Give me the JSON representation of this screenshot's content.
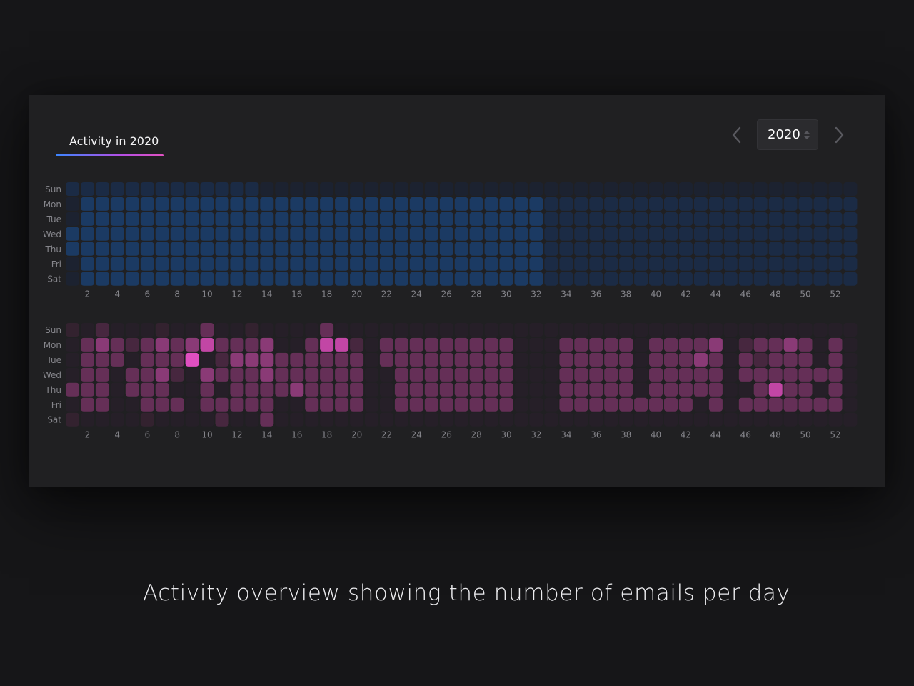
{
  "tab": {
    "label": "Activity in 2020"
  },
  "year_picker": {
    "value": "2020"
  },
  "icons": {
    "prev": "chevron-left-icon",
    "next": "chevron-right-icon",
    "spinner": "up-down-arrows-icon"
  },
  "caption": "Activity overview showing the number of emails per day",
  "colors": {
    "background": "#161618",
    "card": "#202022",
    "blue_scale": [
      "#1c2230",
      "#1b2b45",
      "#1b3a63",
      "#1d4f8a",
      "#1e6ac0",
      "#1f86ef"
    ],
    "pink_scale": [
      "#261f28",
      "#33222f",
      "#47273f",
      "#652f57",
      "#8a3a76",
      "#c246a5",
      "#e04fc1"
    ]
  },
  "chart_data": [
    {
      "type": "heatmap",
      "name": "",
      "y_labels": [
        "Sun",
        "Mon",
        "Tue",
        "Wed",
        "Thu",
        "Fri",
        "Sat"
      ],
      "x_tick_labels": [
        "2",
        "4",
        "6",
        "8",
        "10",
        "12",
        "14",
        "16",
        "18",
        "20",
        "22",
        "24",
        "26",
        "28",
        "30",
        "32",
        "34",
        "36",
        "38",
        "40",
        "42",
        "44",
        "46",
        "48",
        "50",
        "52"
      ],
      "weeks": 53,
      "levels": [
        "11111111111110000000000000000000000000000000000000000",
        "02222222222222222222222222222222111111111111111111111",
        "02222222222222222222222222222222111111111111111111111",
        "22222222222222222222222222222222111111111111111111111",
        "22222222222222222222222222222222111111111111111111111",
        "02222222222222222222222222222222111111111111111111111",
        "02222222222222222222222222222222111111111111111111111"
      ]
    },
    {
      "type": "heatmap",
      "name": "",
      "y_labels": [
        "Sun",
        "Mon",
        "Tue",
        "Wed",
        "Thu",
        "Fri",
        "Sat"
      ],
      "x_tick_labels": [
        "2",
        "4",
        "6",
        "8",
        "10",
        "12",
        "14",
        "16",
        "18",
        "20",
        "22",
        "24",
        "26",
        "28",
        "30",
        "32",
        "34",
        "36",
        "38",
        "40",
        "42",
        "44",
        "46",
        "48",
        "50",
        "52"
      ],
      "weeks": 53,
      "levels": [
        "10200010030010000300000000000000000000000000000000000",
        "03432343453334003552033333333300033333033334023343030",
        "03330333602444333333033333333300033333033343032333030",
        "03303342043334333333003333333300033333033333033333330",
        "33303330030333343333003333333300033333033333003533030",
        "03300333033333003333003333333300033333333303033333330",
        "10000100002003000000000000000000000000000000000000000"
      ]
    }
  ]
}
